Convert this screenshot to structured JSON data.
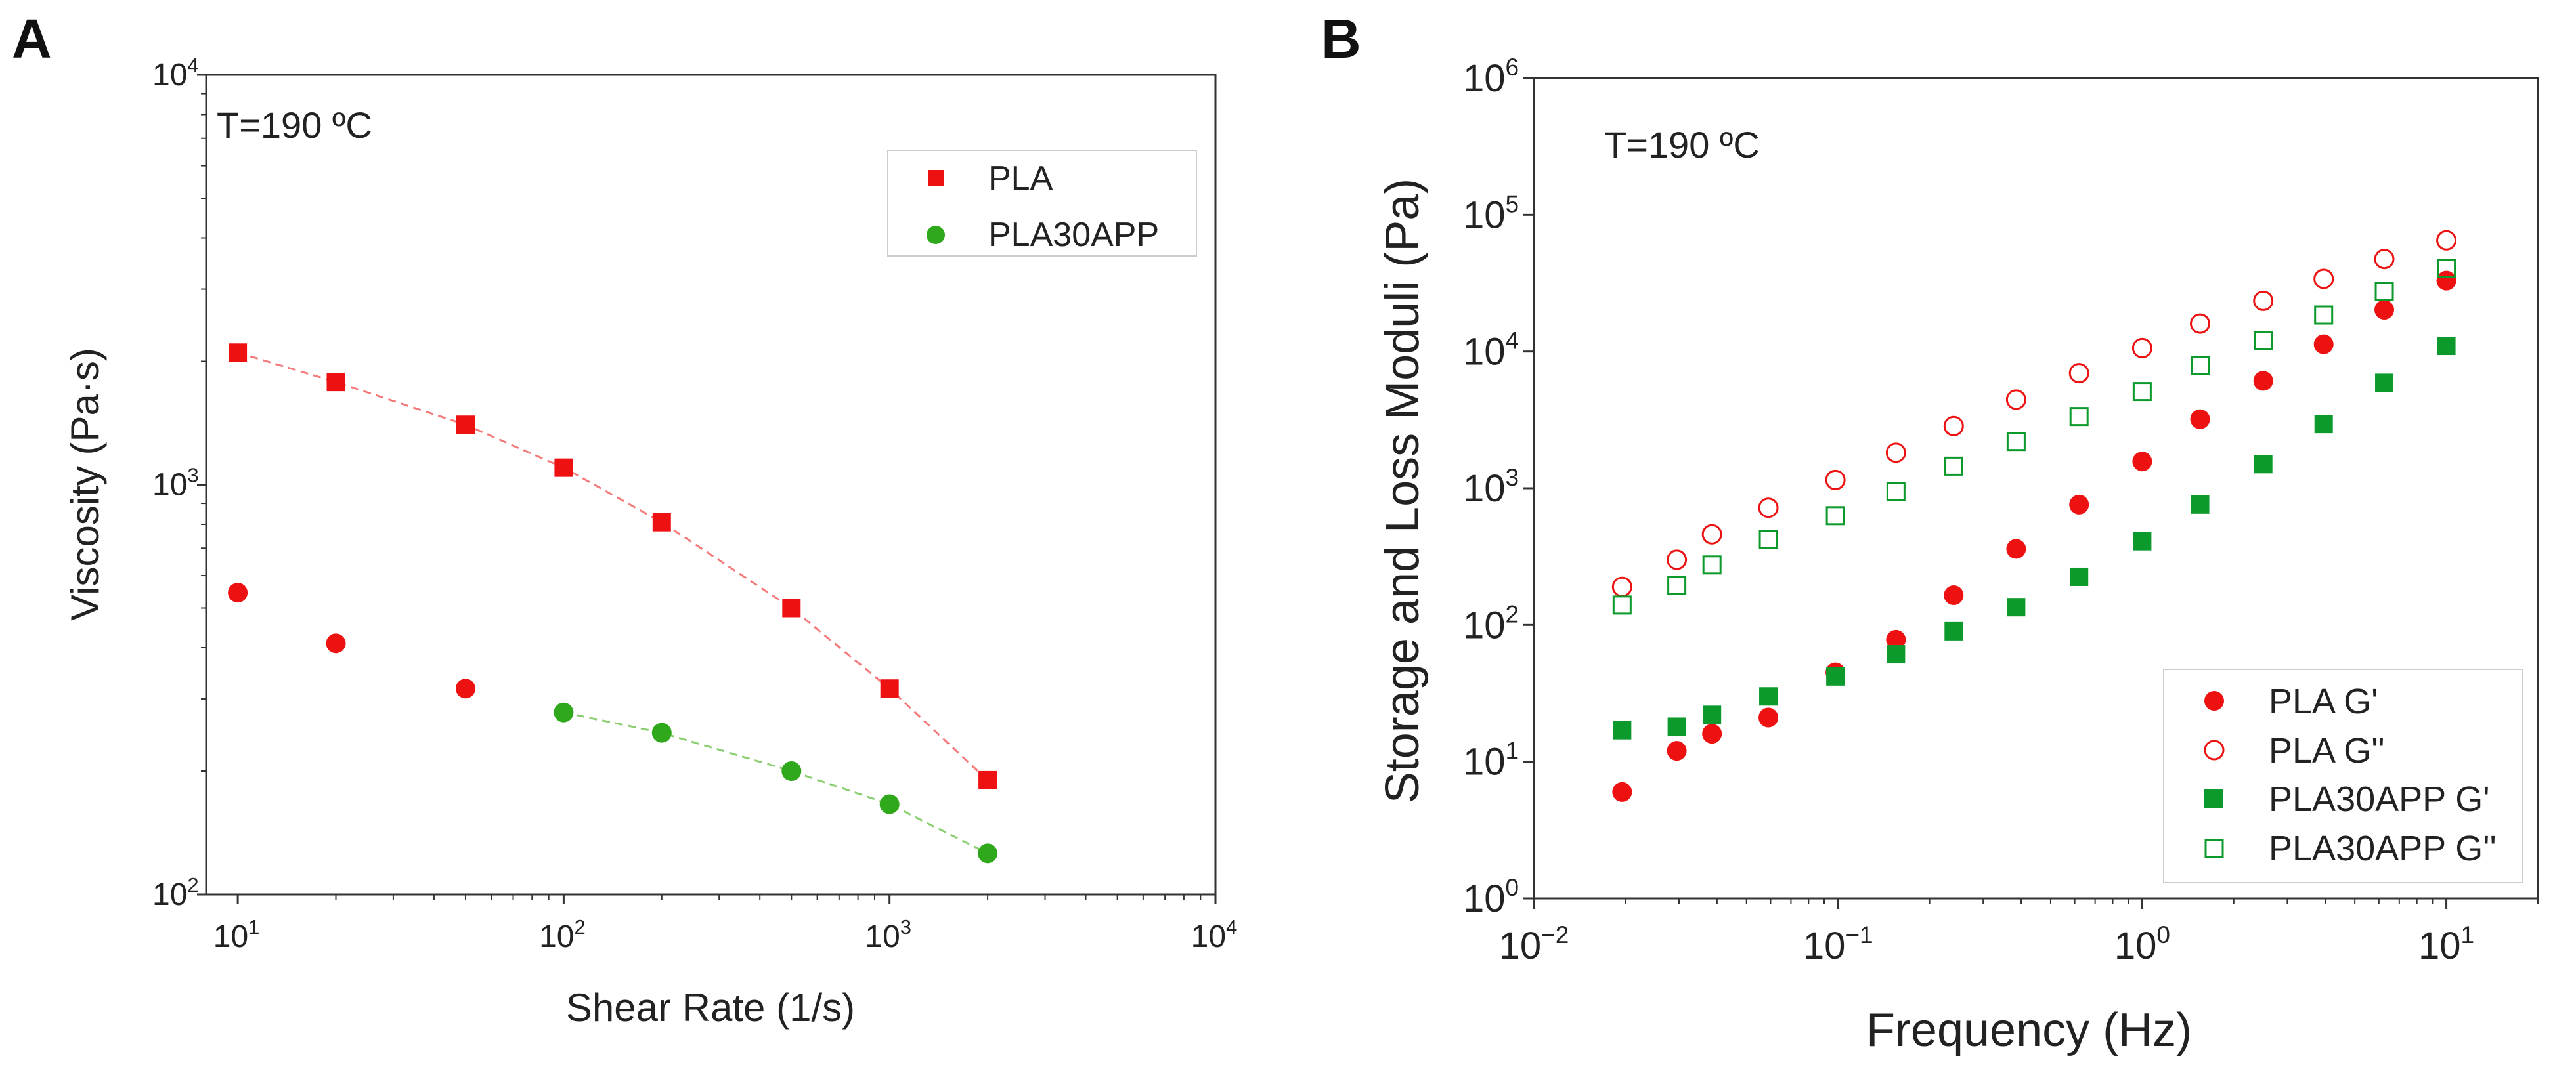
{
  "panels": {
    "a": {
      "letter": "A",
      "annotation": "T=190 ºC"
    },
    "b": {
      "letter": "B",
      "annotation": "T=190 ºC"
    }
  },
  "colors": {
    "red": "#ee1111",
    "green": "#2fa81c",
    "green_dark": "#0c9a2c",
    "line_red": "#f47b7b",
    "line_green": "#8ccf72",
    "axis": "#333333"
  },
  "chart_data": [
    {
      "type": "scatter",
      "id": "a",
      "xlabel": "Shear Rate (1/s)",
      "ylabel": "Viscosity (Pa·s)",
      "xscale": "log",
      "yscale": "log",
      "xlim": [
        8,
        10000
      ],
      "ylim": [
        100,
        10000
      ],
      "xticks": [
        {
          "base": "10",
          "exp": "1"
        },
        {
          "base": "10",
          "exp": "2"
        },
        {
          "base": "10",
          "exp": "3"
        },
        {
          "base": "10",
          "exp": "4"
        }
      ],
      "yticks": [
        {
          "base": "10",
          "exp": "2"
        },
        {
          "base": "10",
          "exp": "3"
        },
        {
          "base": "10",
          "exp": "4"
        }
      ],
      "legend_position": "upper-right",
      "series": [
        {
          "name": "PLA",
          "marker": "square",
          "color": "#ee1111",
          "fit_line": true,
          "line_color": "#f47b7b",
          "x": [
            10,
            20,
            50,
            100,
            200,
            500,
            1000,
            2000
          ],
          "y": [
            2100,
            1780,
            1400,
            1100,
            810,
            500,
            318,
            190
          ]
        },
        {
          "name": "PLA30APP",
          "marker": "circle",
          "color": "#2fa81c",
          "fit_line": true,
          "line_color": "#8ccf72",
          "x": [
            100,
            200,
            500,
            1000,
            2000
          ],
          "y": [
            278,
            248,
            200,
            166,
            126
          ]
        },
        {
          "name": "",
          "marker": "circle",
          "color": "#ee1111",
          "fit_line": false,
          "in_legend": false,
          "x": [
            10,
            20,
            50
          ],
          "y": [
            545,
            410,
            318
          ]
        }
      ]
    },
    {
      "type": "scatter",
      "id": "b",
      "xlabel": "Frequency (Hz)",
      "ylabel": "Storage and Loss Moduli (Pa)",
      "xscale": "log",
      "yscale": "log",
      "xlim": [
        0.01,
        20
      ],
      "ylim": [
        1,
        1000000
      ],
      "xticks": [
        {
          "base": "10",
          "exp": "−2"
        },
        {
          "base": "10",
          "exp": "−1"
        },
        {
          "base": "10",
          "exp": "0"
        },
        {
          "base": "10",
          "exp": "1"
        }
      ],
      "yticks": [
        {
          "base": "10",
          "exp": "0"
        },
        {
          "base": "10",
          "exp": "1"
        },
        {
          "base": "10",
          "exp": "2"
        },
        {
          "base": "10",
          "exp": "3"
        },
        {
          "base": "10",
          "exp": "4"
        },
        {
          "base": "10",
          "exp": "5"
        },
        {
          "base": "10",
          "exp": "6"
        }
      ],
      "legend_position": "lower-right",
      "x": [
        0.0195,
        0.0295,
        0.0385,
        0.059,
        0.098,
        0.155,
        0.24,
        0.385,
        0.62,
        1.0,
        1.55,
        2.5,
        3.95,
        6.25,
        10.0
      ],
      "series": [
        {
          "name": "PLA G'",
          "marker": "circle",
          "filled": true,
          "color": "#ee1111",
          "values": [
            6,
            12,
            16,
            21,
            45,
            78,
            165,
            360,
            760,
            1570,
            3200,
            6100,
            11300,
            20200,
            33000
          ]
        },
        {
          "name": "PLA G''",
          "marker": "circle",
          "filled": false,
          "color": "#ee1111",
          "values": [
            190,
            300,
            460,
            720,
            1150,
            1820,
            2850,
            4450,
            6950,
            10600,
            16000,
            23500,
            34000,
            47500,
            65000
          ]
        },
        {
          "name": "PLA30APP G'",
          "marker": "square",
          "filled": true,
          "color": "#0c9a2c",
          "values": [
            17,
            18,
            22,
            30,
            42,
            61,
            90,
            135,
            225,
            410,
            760,
            1500,
            2950,
            5900,
            11000
          ]
        },
        {
          "name": "PLA30APP G''",
          "marker": "square",
          "filled": false,
          "color": "#0c9a2c",
          "values": [
            140,
            195,
            275,
            420,
            630,
            950,
            1450,
            2200,
            3350,
            5100,
            7900,
            12000,
            18500,
            27500,
            40500
          ]
        }
      ]
    }
  ]
}
